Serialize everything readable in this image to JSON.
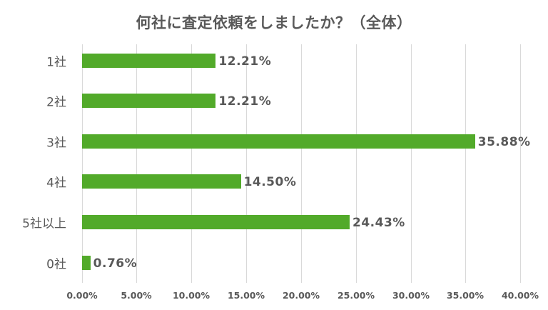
{
  "chart_data": {
    "type": "bar",
    "orientation": "horizontal",
    "title": "何社に査定依頼をしましたか？（全体）",
    "categories": [
      "1社",
      "2社",
      "3社",
      "4社",
      "5社以上",
      "0社"
    ],
    "values": [
      12.21,
      12.21,
      35.88,
      14.5,
      24.43,
      0.76
    ],
    "value_labels": [
      "12.21%",
      "12.21%",
      "35.88%",
      "14.50%",
      "24.43%",
      "0.76%"
    ],
    "xlabel": "",
    "ylabel": "",
    "xlim": [
      0,
      40
    ],
    "x_ticks": [
      "0.00%",
      "5.00%",
      "10.00%",
      "15.00%",
      "20.00%",
      "25.00%",
      "30.00%",
      "35.00%",
      "40.00%"
    ],
    "grid": true,
    "legend": "none",
    "bar_color": "#52aa2a"
  }
}
